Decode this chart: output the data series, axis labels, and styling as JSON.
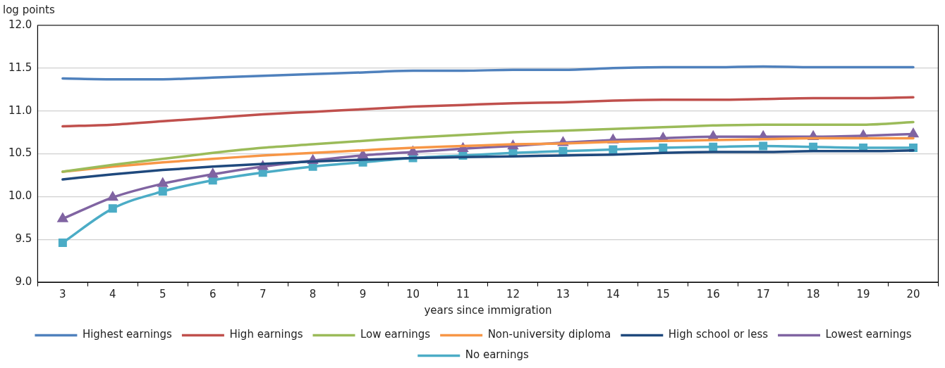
{
  "chart_data": {
    "type": "line",
    "ylabel": "log points",
    "xlabel": "years since immigration",
    "categories": [
      "3",
      "4",
      "5",
      "6",
      "7",
      "8",
      "9",
      "10",
      "11",
      "12",
      "13",
      "14",
      "15",
      "16",
      "17",
      "18",
      "19",
      "20"
    ],
    "ylim": [
      9.0,
      12.0
    ],
    "yticks": [
      {
        "value": 9.0,
        "label": "9.0"
      },
      {
        "value": 9.5,
        "label": "9.5"
      },
      {
        "value": 10.0,
        "label": "10.0"
      },
      {
        "value": 10.5,
        "label": "10.5"
      },
      {
        "value": 11.0,
        "label": "11.0"
      },
      {
        "value": 11.5,
        "label": "11.5"
      },
      {
        "value": 12.0,
        "label": "12.0"
      }
    ],
    "grid": "y",
    "legend": "bottom",
    "marker": "none",
    "line_style": "solid",
    "series": [
      {
        "name": "Highest earnings",
        "color": "#4f81bd",
        "values": [
          11.38,
          11.37,
          11.37,
          11.39,
          11.41,
          11.43,
          11.45,
          11.47,
          11.47,
          11.48,
          11.48,
          11.5,
          11.51,
          11.51,
          11.52,
          11.51,
          11.51,
          11.51
        ]
      },
      {
        "name": "High earnings",
        "color": "#c0504d",
        "values": [
          10.82,
          10.84,
          10.88,
          10.92,
          10.96,
          10.99,
          11.02,
          11.05,
          11.07,
          11.09,
          11.1,
          11.12,
          11.13,
          11.13,
          11.14,
          11.15,
          11.15,
          11.16
        ]
      },
      {
        "name": "Low earnings",
        "color": "#9bbb59",
        "values": [
          10.29,
          10.37,
          10.44,
          10.51,
          10.57,
          10.61,
          10.65,
          10.69,
          10.72,
          10.75,
          10.77,
          10.79,
          10.81,
          10.83,
          10.84,
          10.84,
          10.84,
          10.87
        ]
      },
      {
        "name": "Lowest earnings",
        "color": "#8064a2",
        "marker": "triangle",
        "values": [
          9.74,
          9.99,
          10.15,
          10.26,
          10.35,
          10.42,
          10.48,
          10.52,
          10.56,
          10.59,
          10.63,
          10.66,
          10.68,
          10.7,
          10.7,
          10.7,
          10.71,
          10.73
        ]
      },
      {
        "name": "No earnings",
        "color": "#4bacc6",
        "marker": "square",
        "values": [
          9.46,
          9.86,
          10.06,
          10.19,
          10.28,
          10.35,
          10.4,
          10.45,
          10.48,
          10.51,
          10.53,
          10.55,
          10.57,
          10.58,
          10.59,
          10.58,
          10.57,
          10.57
        ]
      },
      {
        "name": "Non-university diploma",
        "color": "#f79646",
        "values": [
          10.29,
          10.35,
          10.4,
          10.44,
          10.48,
          10.51,
          10.54,
          10.57,
          10.59,
          10.61,
          10.62,
          10.64,
          10.65,
          10.66,
          10.67,
          10.68,
          10.68,
          10.68
        ]
      },
      {
        "name": "High school or less",
        "color": "#1f497d",
        "values": [
          10.2,
          10.26,
          10.31,
          10.35,
          10.38,
          10.41,
          10.43,
          10.45,
          10.46,
          10.47,
          10.48,
          10.49,
          10.51,
          10.52,
          10.52,
          10.53,
          10.53,
          10.54
        ]
      }
    ]
  }
}
